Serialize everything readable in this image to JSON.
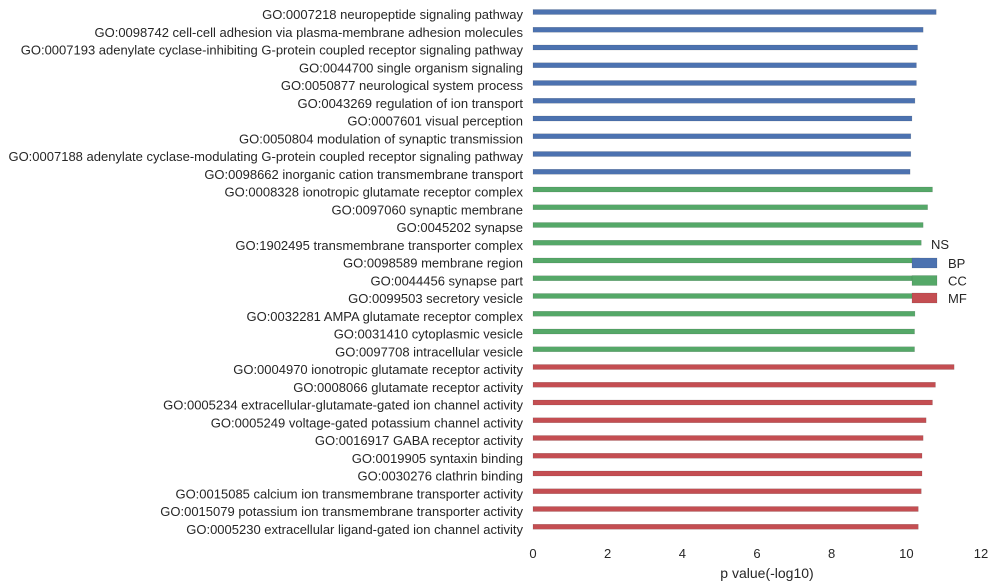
{
  "chart_data": {
    "type": "bar",
    "orientation": "horizontal",
    "xlabel": "p value(-log10)",
    "ylabel": "",
    "xlim": [
      0,
      12
    ],
    "xticks": [
      "0",
      "2",
      "4",
      "6",
      "8",
      "10",
      "12"
    ],
    "grid": false,
    "legend": {
      "title": "NS",
      "placement": "right",
      "entries": [
        {
          "name": "BP",
          "color": "#4c72b0"
        },
        {
          "name": "CC",
          "color": "#55a868"
        },
        {
          "name": "MF",
          "color": "#c44e52"
        }
      ]
    },
    "categories": [
      {
        "label": "GO:0007218 neuropeptide signaling pathway",
        "value": 10.8,
        "group": "BP"
      },
      {
        "label": "GO:0098742 cell-cell adhesion via plasma-membrane adhesion molecules",
        "value": 10.45,
        "group": "BP"
      },
      {
        "label": "GO:0007193 adenylate cyclase-inhibiting G-protein coupled receptor signaling pathway",
        "value": 10.3,
        "group": "BP"
      },
      {
        "label": "GO:0044700 single organism signaling",
        "value": 10.27,
        "group": "BP"
      },
      {
        "label": "GO:0050877 neurological system process",
        "value": 10.27,
        "group": "BP"
      },
      {
        "label": "GO:0043269 regulation of ion transport",
        "value": 10.23,
        "group": "BP"
      },
      {
        "label": "GO:0007601 visual perception",
        "value": 10.15,
        "group": "BP"
      },
      {
        "label": "GO:0050804 modulation of synaptic transmission",
        "value": 10.12,
        "group": "BP"
      },
      {
        "label": "GO:0007188 adenylate cyclase-modulating G-protein coupled receptor signaling pathway",
        "value": 10.12,
        "group": "BP"
      },
      {
        "label": "GO:0098662 inorganic cation transmembrane transport",
        "value": 10.1,
        "group": "BP"
      },
      {
        "label": "GO:0008328 ionotropic glutamate receptor complex",
        "value": 10.7,
        "group": "CC"
      },
      {
        "label": "GO:0097060 synaptic membrane",
        "value": 10.57,
        "group": "CC"
      },
      {
        "label": "GO:0045202 synapse",
        "value": 10.45,
        "group": "CC"
      },
      {
        "label": "GO:1902495 transmembrane transporter complex",
        "value": 10.4,
        "group": "CC"
      },
      {
        "label": "GO:0098589 membrane region",
        "value": 10.35,
        "group": "CC"
      },
      {
        "label": "GO:0044456 synapse part",
        "value": 10.3,
        "group": "CC"
      },
      {
        "label": "GO:0099503 secretory vesicle",
        "value": 10.27,
        "group": "CC"
      },
      {
        "label": "GO:0032281 AMPA glutamate receptor complex",
        "value": 10.23,
        "group": "CC"
      },
      {
        "label": "GO:0031410 cytoplasmic vesicle",
        "value": 10.22,
        "group": "CC"
      },
      {
        "label": "GO:0097708 intracellular vesicle",
        "value": 10.22,
        "group": "CC"
      },
      {
        "label": "GO:0004970 ionotropic glutamate receptor activity",
        "value": 11.28,
        "group": "MF"
      },
      {
        "label": "GO:0008066 glutamate receptor activity",
        "value": 10.78,
        "group": "MF"
      },
      {
        "label": "GO:0005234 extracellular-glutamate-gated ion channel activity",
        "value": 10.7,
        "group": "MF"
      },
      {
        "label": "GO:0005249 voltage-gated potassium channel activity",
        "value": 10.53,
        "group": "MF"
      },
      {
        "label": "GO:0016917 GABA receptor activity",
        "value": 10.45,
        "group": "MF"
      },
      {
        "label": "GO:0019905 syntaxin binding",
        "value": 10.42,
        "group": "MF"
      },
      {
        "label": "GO:0030276 clathrin binding",
        "value": 10.42,
        "group": "MF"
      },
      {
        "label": "GO:0015085 calcium ion transmembrane transporter activity",
        "value": 10.4,
        "group": "MF"
      },
      {
        "label": "GO:0015079 potassium ion transmembrane transporter activity",
        "value": 10.32,
        "group": "MF"
      },
      {
        "label": "GO:0005230 extracellular ligand-gated ion channel activity",
        "value": 10.32,
        "group": "MF"
      }
    ]
  }
}
